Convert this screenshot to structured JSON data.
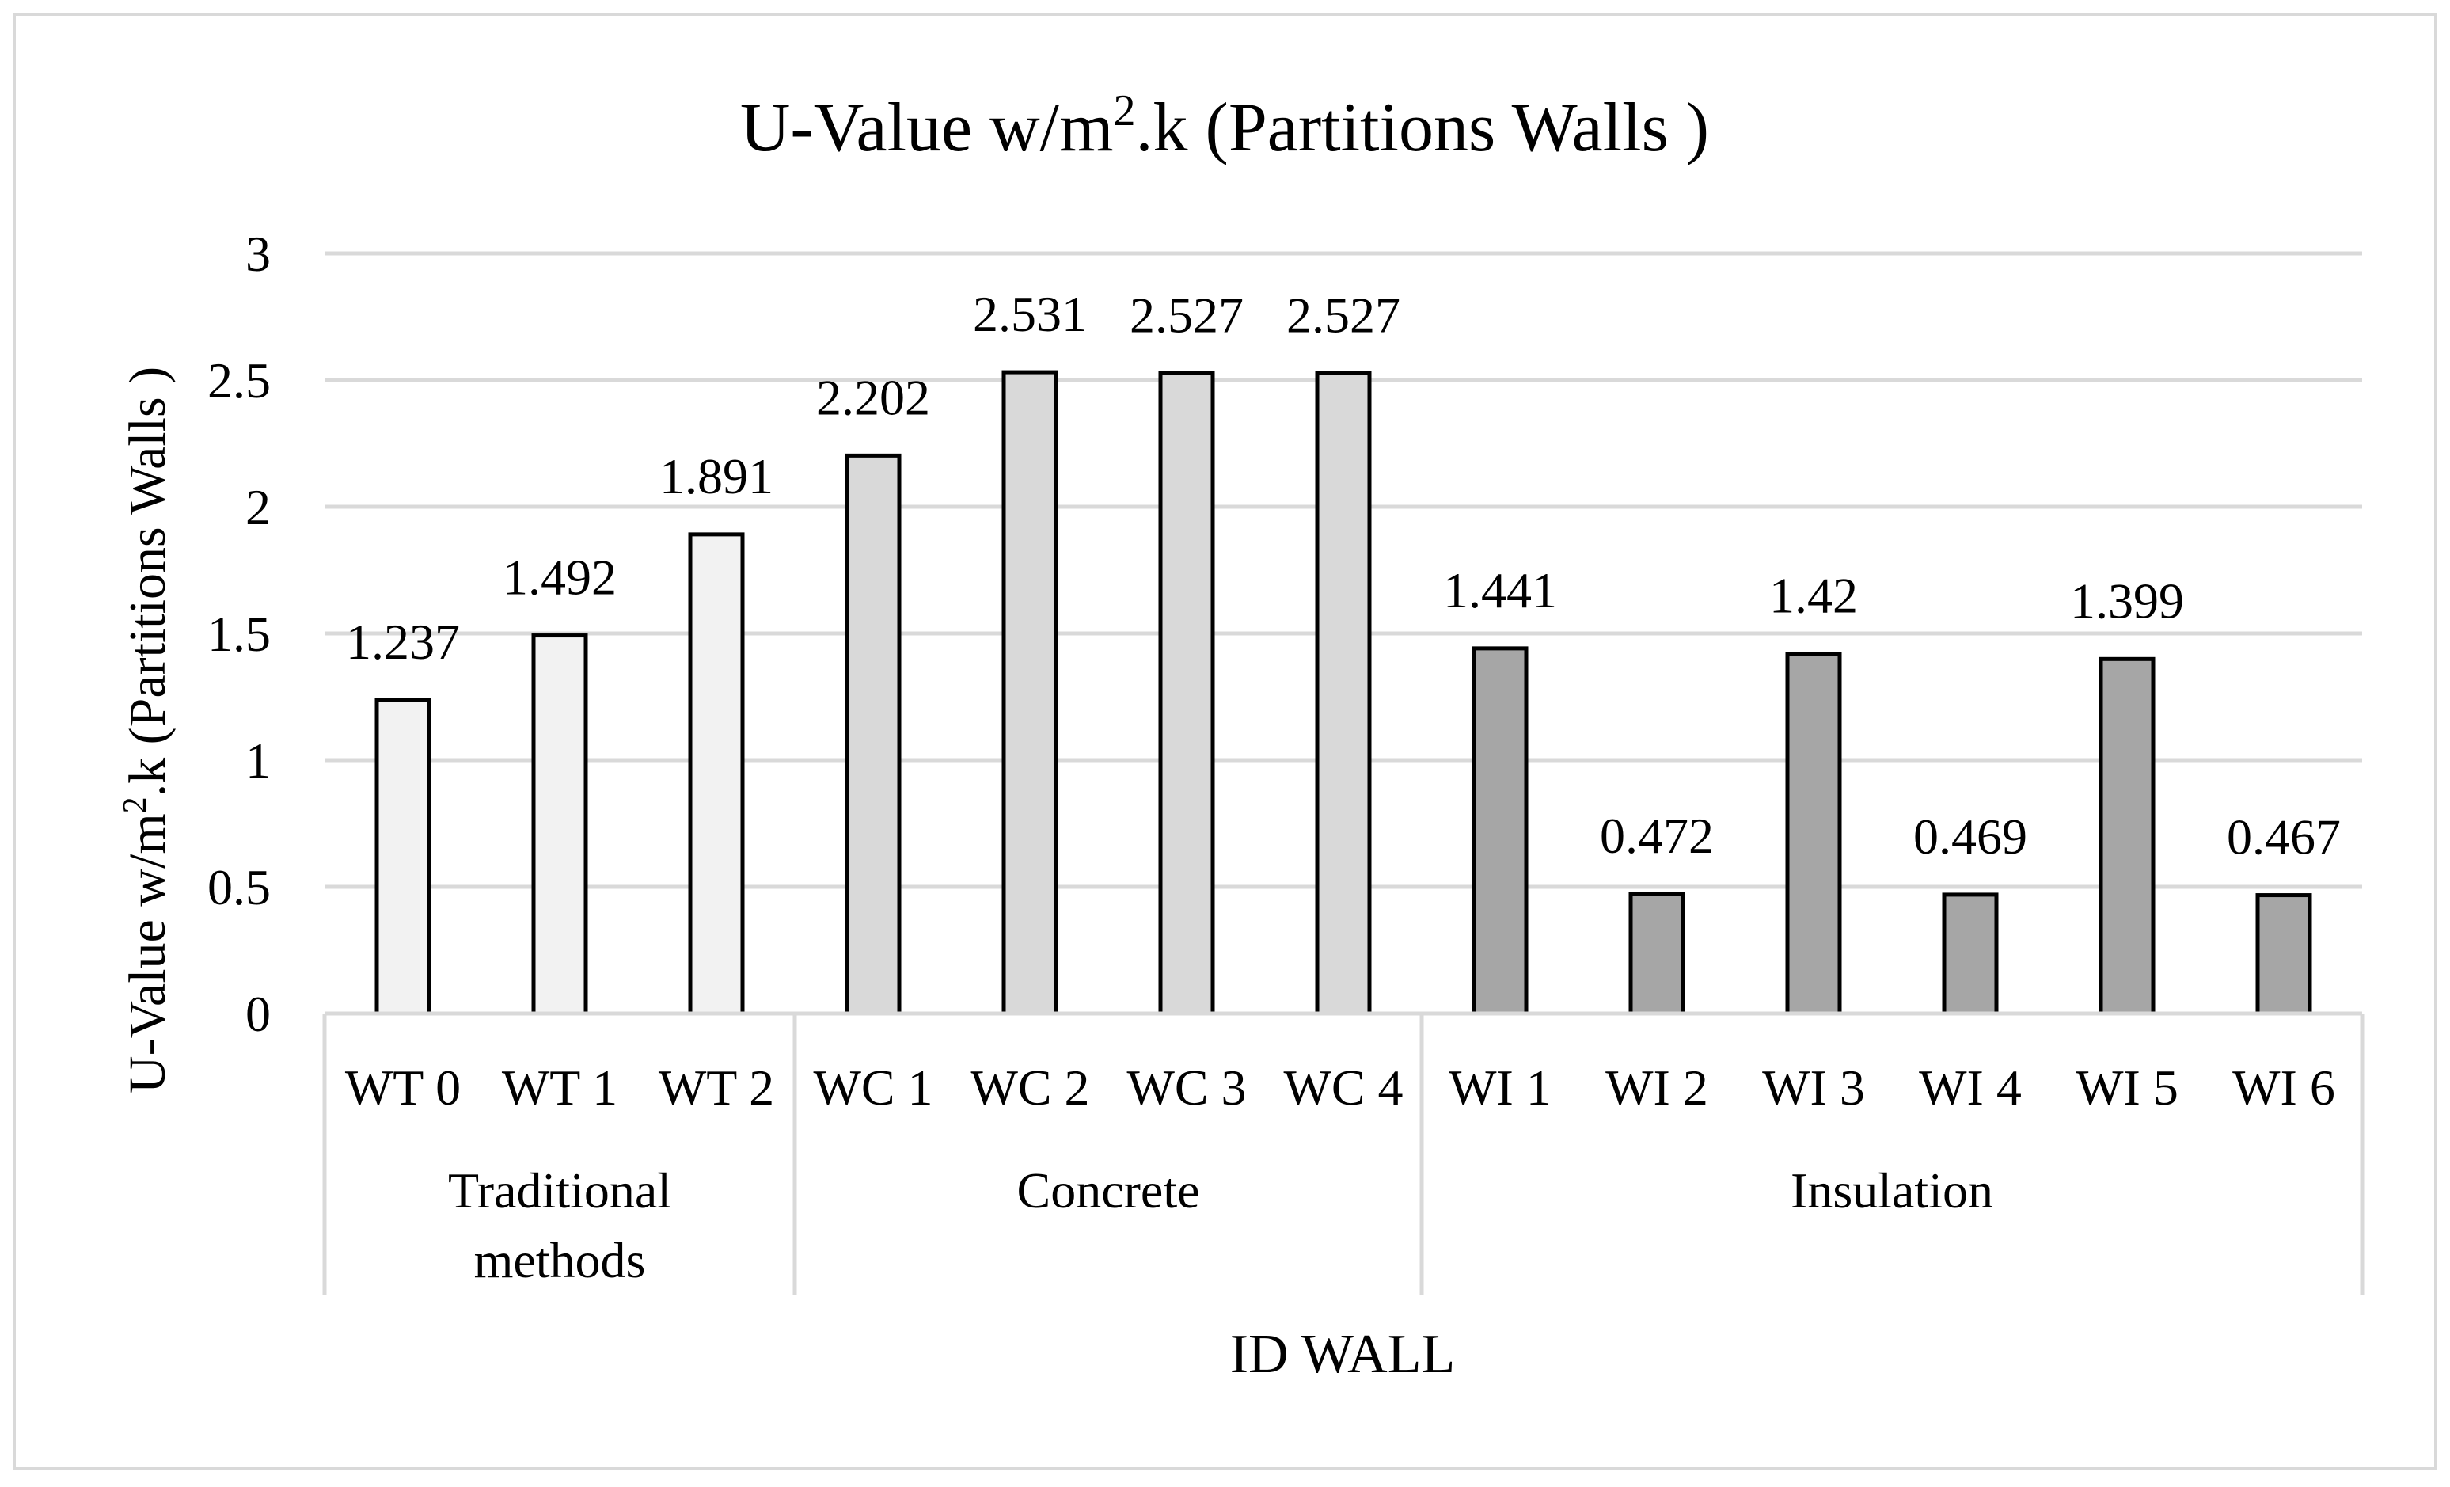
{
  "chart_data": {
    "type": "bar",
    "title_main": "U-Value w/m",
    "title_sup": "2",
    "title_rest": ".k (Partitions Walls )",
    "xlabel": "ID WALL",
    "ylabel_main": "U-Value w/m",
    "ylabel_sup": "2",
    "ylabel_rest": ".k (Partitions Walls )",
    "ylim": [
      0,
      3
    ],
    "yticks": [
      "0",
      "0.5",
      "1",
      "1.5",
      "2",
      "2.5",
      "3"
    ],
    "grid": true,
    "categories": [
      "WT 0",
      "WT 1",
      "WT 2",
      "WC 1",
      "WC 2",
      "WC 3",
      "WC 4",
      "WI 1",
      "WI 2",
      "WI 3",
      "WI 4",
      "WI 5",
      "WI 6"
    ],
    "values": [
      1.237,
      1.492,
      1.891,
      2.202,
      2.531,
      2.527,
      2.527,
      1.441,
      0.472,
      1.42,
      0.469,
      1.399,
      0.467
    ],
    "value_labels": [
      "1.237",
      "1.492",
      "1.891",
      "2.202",
      "2.531",
      "2.527",
      "2.527",
      "1.441",
      "0.472",
      "1.42",
      "0.469",
      "1.399",
      "0.467"
    ],
    "groups": [
      {
        "name_lines": [
          "Traditional",
          "methods"
        ],
        "count": 3,
        "color": "#f2f2f2"
      },
      {
        "name_lines": [
          "Concrete"
        ],
        "count": 4,
        "color": "#d9d9d9"
      },
      {
        "name_lines": [
          "Insulation"
        ],
        "count": 6,
        "color": "#a6a6a6"
      }
    ],
    "colors": {
      "bar_outline": "#000000",
      "grid": "#d9d9d9",
      "axis": "#d9d9d9",
      "frame": "#d9d9d9",
      "background": "#ffffff"
    }
  }
}
